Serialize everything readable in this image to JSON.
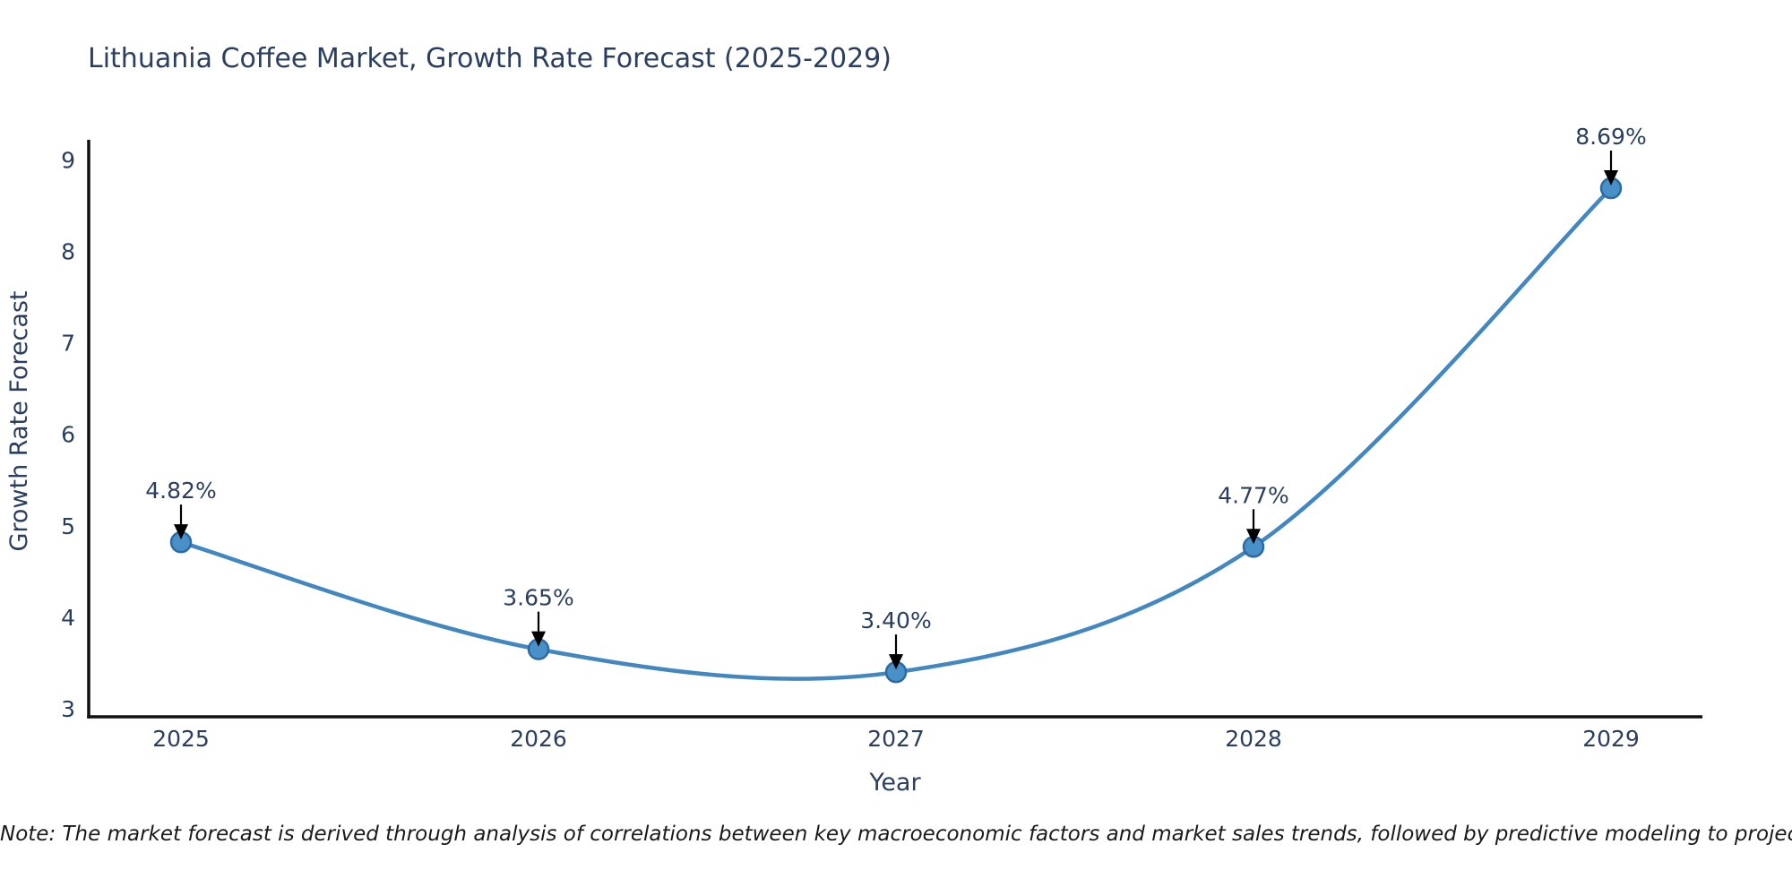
{
  "chart_data": {
    "type": "line",
    "title": "Lithuania Coffee Market, Growth Rate Forecast (2025-2029)",
    "categories": [
      "2025",
      "2026",
      "2027",
      "2028",
      "2029"
    ],
    "series": [
      {
        "name": "Growth Rate Forecast",
        "values": [
          4.82,
          3.65,
          3.4,
          4.77,
          8.69
        ]
      }
    ],
    "point_labels": [
      "4.82%",
      "3.65%",
      "3.40%",
      "4.77%",
      "8.69%"
    ],
    "xlabel": "Year",
    "ylabel": "Growth Rate Forecast",
    "ylim": [
      3,
      9
    ],
    "y_ticks": [
      3,
      4,
      5,
      6,
      7,
      8,
      9
    ],
    "line_shape": "spline",
    "grid": false,
    "legend_position": "none",
    "colors": {
      "line": "#4387c1",
      "marker_fill": "#4a90c8",
      "marker_edge": "#2a6aa5",
      "axis_line": "#111111",
      "tick_text": "#2a3f5f",
      "title_text": "#2a3f5f",
      "annotation_arrow": "#000000"
    }
  },
  "note": "Note: The market forecast is derived through analysis of correlations between key macroeconomic factors and market sales trends, followed by predictive modeling to project future sales."
}
